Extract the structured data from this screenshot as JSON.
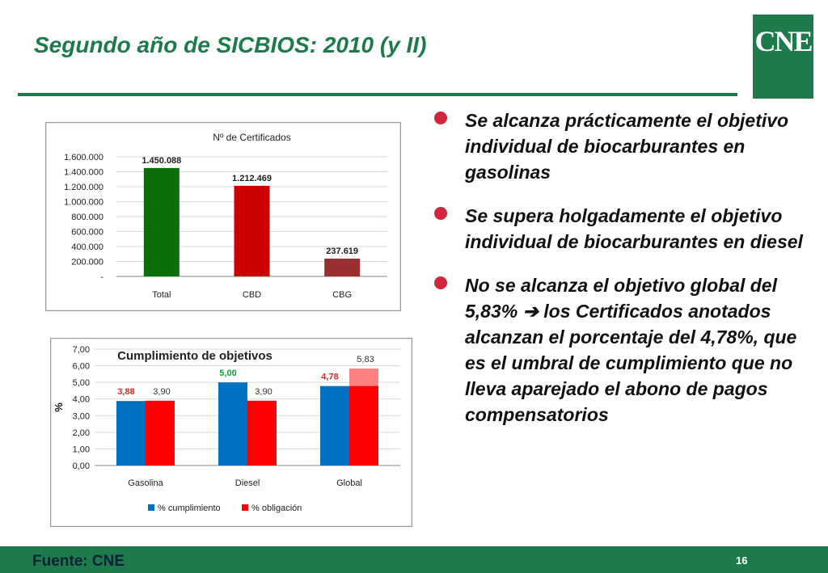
{
  "slide": {
    "title": "Segundo año de SICBIOS: 2010 (y II)",
    "logo_text": "CNE",
    "footer_source": "Fuente: CNE",
    "page_number": "16",
    "colors": {
      "brand_green": "#1d7a4a",
      "bullet_red": "#d0253a"
    }
  },
  "bullets": [
    {
      "text": "Se alcanza prácticamente el objetivo individual de biocarburantes en gasolinas"
    },
    {
      "text": "Se supera holgadamente el objetivo individual de biocarburantes en diesel"
    },
    {
      "text": "No se alcanza el objetivo global del 5,83% ➔ los Certificados anotados alcanzan el porcentaje del 4,78%, que es el umbral de cumplimiento que no lleva aparejado el abono de  pagos compensatorios"
    }
  ],
  "chart_data": [
    {
      "type": "bar",
      "title": "Nº de Certificados",
      "categories": [
        "Total",
        "CBD",
        "CBG"
      ],
      "values": [
        1450088,
        1212469,
        237619
      ],
      "value_labels": [
        "1.450.088",
        "1.212.469",
        "237.619"
      ],
      "bar_colors": [
        "#0a6e0a",
        "#cc0000",
        "#9b2f30"
      ],
      "ylim": [
        0,
        1600000
      ],
      "yticks": [
        0,
        200000,
        400000,
        600000,
        800000,
        1000000,
        1200000,
        1400000,
        1600000
      ],
      "ytick_labels": [
        "-",
        "200.000",
        "400.000",
        "600.000",
        "800.000",
        "1.000.000",
        "1.200.000",
        "1.400.000",
        "1.600.000"
      ],
      "grid": true,
      "xlabel": "",
      "ylabel": ""
    },
    {
      "type": "bar",
      "title": "Cumplimiento de objetivos",
      "categories": [
        "Gasolina",
        "Diesel",
        "Global"
      ],
      "series": [
        {
          "name": "% cumplimiento",
          "color": "#0070c0",
          "values": [
            3.88,
            5.0,
            4.78
          ],
          "labels": [
            "3,88",
            "5,00",
            "4,78"
          ],
          "label_colors": [
            "#e0261b",
            "#10a040",
            "#e0261b"
          ]
        },
        {
          "name": "% obligación",
          "color": "#ff0000",
          "values": [
            3.9,
            3.9,
            5.83
          ],
          "labels": [
            "3,90",
            "3,90",
            "5,83"
          ],
          "label_colors": [
            "#333333",
            "#333333",
            "#333333"
          ]
        }
      ],
      "highlight": {
        "category": "Global",
        "from": 4.78,
        "to": 5.83,
        "color": "#ff8080"
      },
      "ylim": [
        0,
        7
      ],
      "yticks": [
        0,
        1,
        2,
        3,
        4,
        5,
        6,
        7
      ],
      "ytick_labels": [
        "0,00",
        "1,00",
        "2,00",
        "3,00",
        "4,00",
        "5,00",
        "6,00",
        "7,00"
      ],
      "ylabel": "%",
      "xlabel": "",
      "grid": true,
      "legend": "bottom"
    }
  ]
}
